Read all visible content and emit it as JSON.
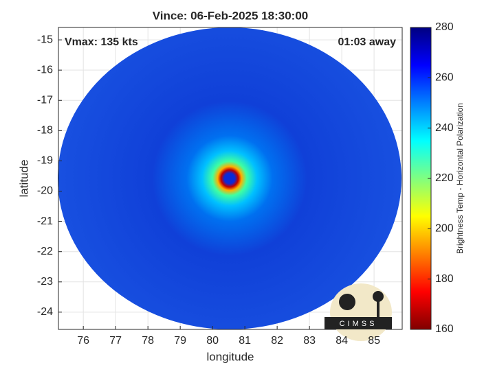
{
  "chart_data": {
    "type": "map",
    "title": "Vince: 06-Feb-2025 18:30:00",
    "xlabel": "longitude",
    "ylabel": "latitude",
    "annotations": [
      "Vmax: 135 kts",
      "01:03 away"
    ],
    "xlim": [
      75.23,
      85.87
    ],
    "ylim": [
      -24.57,
      -14.59
    ],
    "xticks": [
      76,
      77,
      78,
      79,
      80,
      81,
      82,
      83,
      84,
      85
    ],
    "yticks": [
      -15,
      -16,
      -17,
      -18,
      -19,
      -20,
      -21,
      -22,
      -23,
      -24
    ],
    "grid": true,
    "colorbar": {
      "label": "Brightness Temp - Horizontal Polarization",
      "lim": [
        160,
        280
      ],
      "ticks": [
        160,
        180,
        200,
        220,
        240,
        260,
        280
      ],
      "colors": [
        "#800000",
        "#ff0000",
        "#ff8000",
        "#ffff00",
        "#80ff80",
        "#00ffff",
        "#0080ff",
        "#0000ff",
        "#000080"
      ]
    },
    "logo": "CIMSS"
  }
}
